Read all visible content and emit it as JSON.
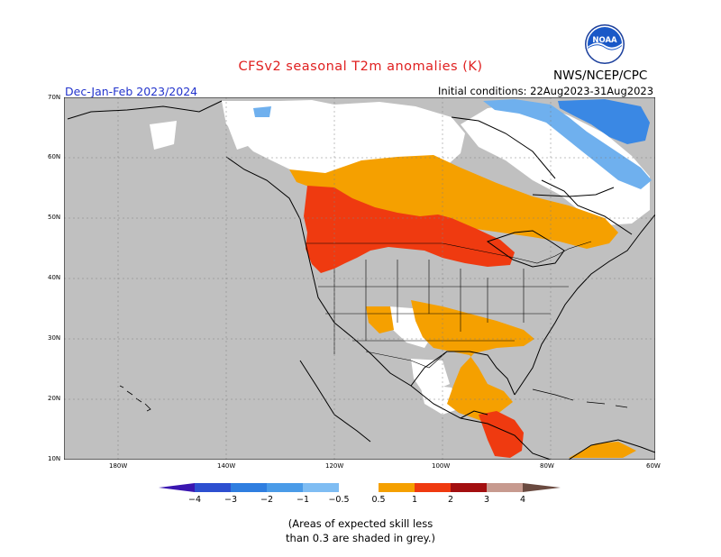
{
  "header": {
    "title": "CFSv2 seasonal T2m anomalies (K)",
    "agency": "NWS/NCEP/CPC",
    "season": "Dec-Jan-Feb 2023/2024",
    "initial_conditions": "Initial conditions: 22Aug2023-31Aug2023",
    "logo_text": "NOAA"
  },
  "map": {
    "projection": "lat-lon",
    "lon_range": [
      -190,
      -60
    ],
    "lat_range": [
      10,
      70
    ],
    "lat_labels": [
      "10N",
      "20N",
      "30N",
      "40N",
      "50N",
      "60N",
      "70N"
    ],
    "lon_labels": [
      "180W",
      "140W",
      "120W",
      "100W",
      "80W",
      "60W"
    ],
    "grey_meaning": "skill < 0.3",
    "colors": {
      "no_skill": "#c0c0c0",
      "neutral": "#ffffff",
      "warm_0_5_1": "#f5a000",
      "warm_1_2": "#ef3a10",
      "cold_m1_m0_5": "#6fb0ee",
      "cold_m2_m1": "#3a88e4"
    }
  },
  "colorbar": {
    "tick_labels": [
      "−4",
      "−3",
      "−2",
      "−1",
      "−0.5",
      "0.5",
      "1",
      "2",
      "3",
      "4"
    ],
    "colors": [
      "#3a16b0",
      "#2d4fd0",
      "#2f7ee0",
      "#4a9be8",
      "#7fbdf3",
      "#ffffff",
      "#f5a000",
      "#ef3a10",
      "#a30f10",
      "#c79a8f",
      "#6a4a40"
    ]
  },
  "footnote": {
    "line1": "(Areas of expected skill less",
    "line2": "than 0.3 are shaded in grey.)"
  }
}
